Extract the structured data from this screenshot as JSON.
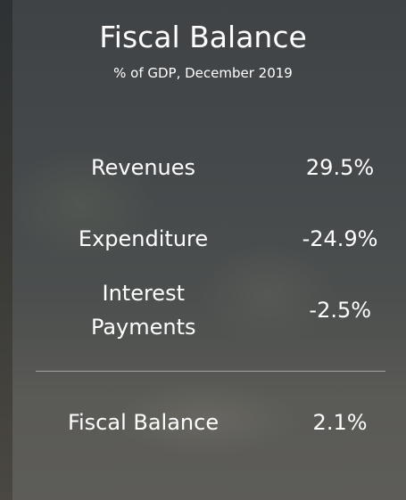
{
  "title": "Fiscal Balance",
  "subtitle": "% of GDP, December 2019",
  "rows": [
    {
      "label": "Revenues",
      "value": "29.5%"
    },
    {
      "label": "Expenditure",
      "value": "-24.9%"
    },
    {
      "label": "Interest Payments",
      "value": "-2.5%"
    }
  ],
  "total": {
    "label": "Fiscal Balance",
    "value": "2.1%"
  }
}
